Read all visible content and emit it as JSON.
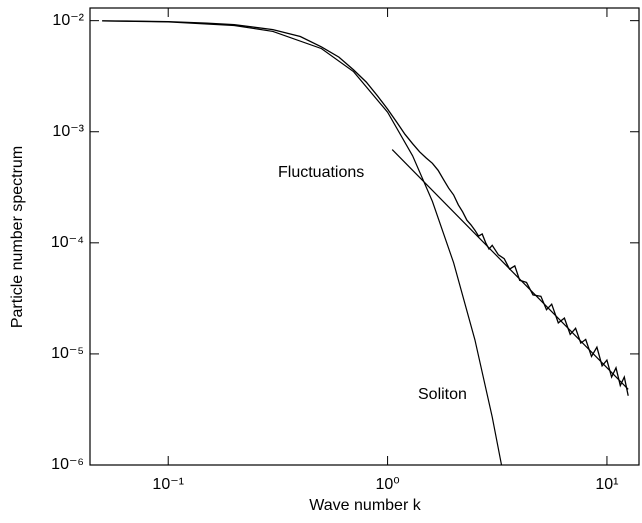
{
  "chart_data": {
    "type": "line",
    "xlabel": "Wave number k",
    "ylabel": "Particle number spectrum",
    "xscale": "log",
    "yscale": "log",
    "xlim": [
      0.044,
      14
    ],
    "ylim": [
      1e-06,
      0.013
    ],
    "xticks": [
      {
        "value": 0.1,
        "label": "10⁻¹"
      },
      {
        "value": 1,
        "label": "10⁰"
      },
      {
        "value": 10,
        "label": "10¹"
      }
    ],
    "yticks": [
      {
        "value": 1e-06,
        "label": "10⁻⁶"
      },
      {
        "value": 1e-05,
        "label": "10⁻⁵"
      },
      {
        "value": 0.0001,
        "label": "10⁻⁴"
      },
      {
        "value": 0.001,
        "label": "10⁻³"
      },
      {
        "value": 0.01,
        "label": "10⁻²"
      }
    ],
    "series": [
      {
        "color": "#000000",
        "x": [
          0.05,
          0.07,
          0.1,
          0.15,
          0.2,
          0.3,
          0.4,
          0.5,
          0.6,
          0.7,
          0.8,
          0.9,
          1.0,
          1.1,
          1.2,
          1.3,
          1.4,
          1.5,
          1.6,
          1.7,
          1.8,
          1.9,
          2.0,
          2.1,
          2.2,
          2.3,
          2.4,
          2.5,
          2.6,
          2.7,
          2.8,
          2.9,
          3.0,
          3.2,
          3.4,
          3.6,
          3.8,
          4.0,
          4.3,
          4.6,
          5.0,
          5.3,
          5.6,
          6.0,
          6.4,
          6.8,
          7.2,
          7.6,
          8.0,
          8.5,
          9.0,
          9.5,
          10,
          10.5,
          11,
          11.5,
          12,
          12.5
        ],
        "values": [
          0.00995,
          0.0099,
          0.0098,
          0.0095,
          0.0092,
          0.0083,
          0.0072,
          0.0058,
          0.0047,
          0.0036,
          0.0028,
          0.0021,
          0.0016,
          0.00122,
          0.00095,
          0.00078,
          0.00066,
          0.00058,
          0.00052,
          0.00045,
          0.00037,
          0.00031,
          0.00027,
          0.00022,
          0.00019,
          0.00016,
          0.000145,
          0.00013,
          0.000115,
          0.00012,
          0.0001,
          8.8e-05,
          9.5e-05,
          7.8e-05,
          7.2e-05,
          5.8e-05,
          6.2e-05,
          4.6e-05,
          4.4e-05,
          3.4e-05,
          3.3e-05,
          2.5e-05,
          2.8e-05,
          1.9e-05,
          2.1e-05,
          1.5e-05,
          1.7e-05,
          1.25e-05,
          1.35e-05,
          9.5e-06,
          1.15e-05,
          7.8e-06,
          8.8e-06,
          6.2e-06,
          7.5e-06,
          5.2e-06,
          6.2e-06,
          4.2e-06
        ]
      },
      {
        "name": "Soliton",
        "color": "#000000",
        "x": [
          0.05,
          0.1,
          0.2,
          0.3,
          0.5,
          0.7,
          1.0,
          1.3,
          1.6,
          2.0,
          2.5,
          3.0,
          3.4
        ],
        "values": [
          0.00994,
          0.00975,
          0.00904,
          0.008,
          0.0056,
          0.00347,
          0.0015,
          0.000607,
          0.000236,
          6.63e-05,
          1.34e-05,
          2.71e-06,
          7.5e-07
        ]
      },
      {
        "name": "Fluctuations",
        "color": "#000000",
        "x": [
          1.05,
          12.5
        ],
        "values": [
          0.00069,
          4.8e-06
        ]
      }
    ]
  }
}
